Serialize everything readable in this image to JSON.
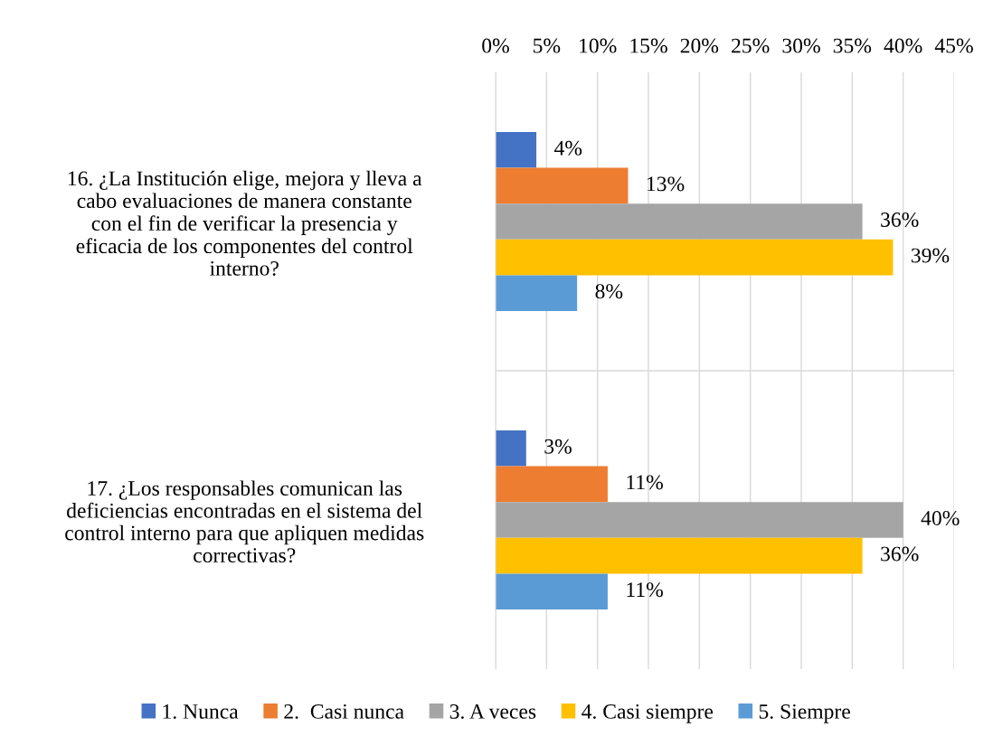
{
  "chart_data": {
    "type": "bar",
    "orientation": "horizontal",
    "categories": [
      "16. ¿La Institución elige, mejora y lleva a\ncabo evaluaciones de manera constante\ncon el fin de verificar la presencia y\neficacia de los componentes del control\ninterno?",
      "17. ¿Los responsables comunican las\ndeficiencias encontradas en el sistema del\ncontrol interno para que apliquen medidas\ncorrectivas?"
    ],
    "series": [
      {
        "name": "1. Nunca",
        "color": "#4472c4",
        "values": [
          4,
          3
        ],
        "value_labels": [
          "4%",
          "3%"
        ]
      },
      {
        "name": "2.  Casi nunca",
        "color": "#ed7d31",
        "values": [
          13,
          11
        ],
        "value_labels": [
          "13%",
          "11%"
        ]
      },
      {
        "name": "3. A veces",
        "color": "#a5a5a5",
        "values": [
          36,
          40
        ],
        "value_labels": [
          "36%",
          "40%"
        ]
      },
      {
        "name": "4. Casi siempre",
        "color": "#ffc000",
        "values": [
          39,
          36
        ],
        "value_labels": [
          "39%",
          "36%"
        ]
      },
      {
        "name": "5. Siempre",
        "color": "#5b9bd5",
        "values": [
          8,
          11
        ],
        "value_labels": [
          "8%",
          "11%"
        ]
      }
    ],
    "xlim": [
      0,
      45
    ],
    "xticks": [
      {
        "value": 0,
        "label": "0%"
      },
      {
        "value": 5,
        "label": "5%"
      },
      {
        "value": 10,
        "label": "10%"
      },
      {
        "value": 15,
        "label": "15%"
      },
      {
        "value": 20,
        "label": "20%"
      },
      {
        "value": 25,
        "label": "25%"
      },
      {
        "value": 30,
        "label": "30%"
      },
      {
        "value": 35,
        "label": "35%"
      },
      {
        "value": 40,
        "label": "40%"
      },
      {
        "value": 45,
        "label": "45%"
      }
    ],
    "grid": "x",
    "legend": "bottom"
  }
}
